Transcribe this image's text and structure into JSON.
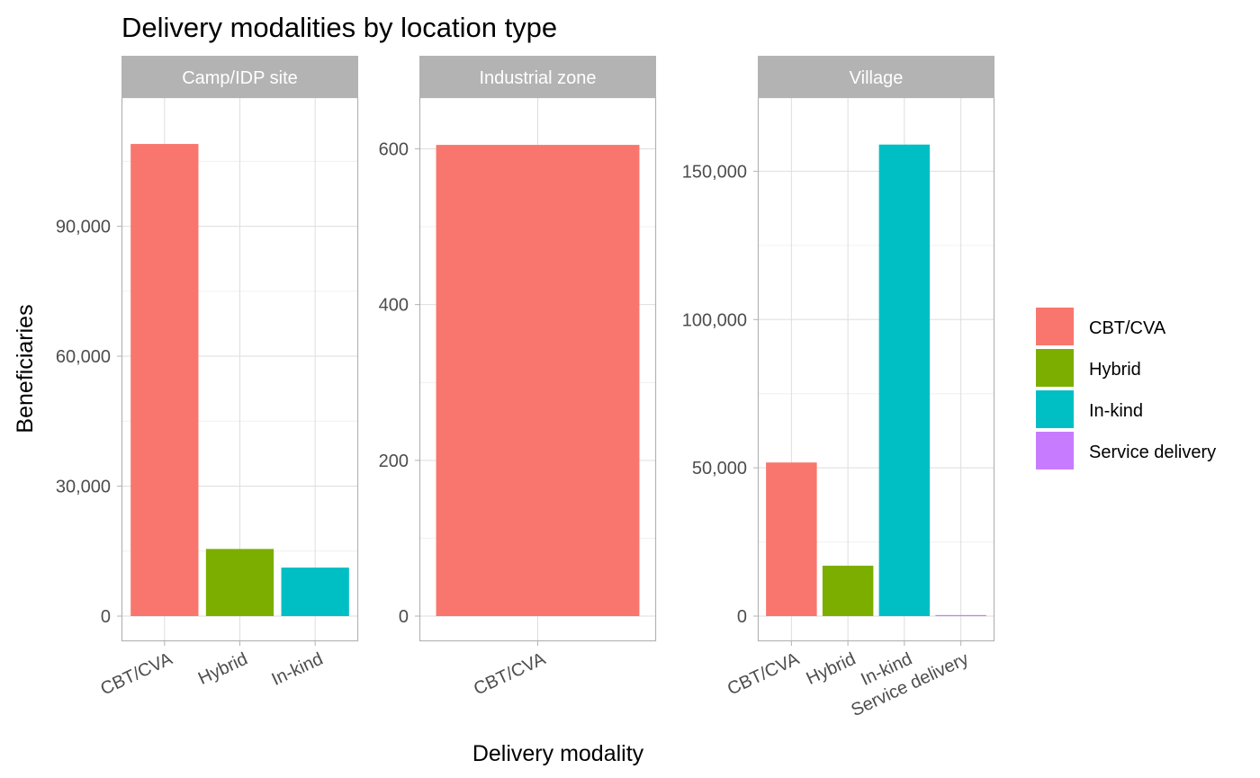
{
  "chart_data": {
    "type": "bar",
    "title": "Delivery modalities by location type",
    "xlabel": "Delivery modality",
    "ylabel": "Beneficiaries",
    "grid": true,
    "legend_position": "right",
    "legend": [
      {
        "name": "CBT/CVA",
        "color": "#F8766D"
      },
      {
        "name": "Hybrid",
        "color": "#7CAE00"
      },
      {
        "name": "In-kind",
        "color": "#00BFC4"
      },
      {
        "name": "Service delivery",
        "color": "#C77CFF"
      }
    ],
    "panels": [
      {
        "label": "Camp/IDP site",
        "categories": [
          "CBT/CVA",
          "Hybrid",
          "In-kind"
        ],
        "values": [
          109000,
          15500,
          11200
        ],
        "ylim": [
          0,
          114000
        ],
        "yticks": [
          0,
          30000,
          60000,
          90000
        ],
        "ytick_labels": [
          "0",
          "30,000",
          "60,000",
          "90,000"
        ]
      },
      {
        "label": "Industrial zone",
        "categories": [
          "CBT/CVA"
        ],
        "values": [
          605
        ],
        "ylim": [
          0,
          634
        ],
        "yticks": [
          0,
          200,
          400,
          600
        ],
        "ytick_labels": [
          "0",
          "200",
          "400",
          "600"
        ]
      },
      {
        "label": "Village",
        "categories": [
          "CBT/CVA",
          "Hybrid",
          "In-kind",
          "Service delivery"
        ],
        "values": [
          51800,
          17000,
          159000,
          350
        ],
        "ylim": [
          0,
          166500
        ],
        "yticks": [
          0,
          50000,
          100000,
          150000
        ],
        "ytick_labels": [
          "0",
          "50,000",
          "100,000",
          "150,000"
        ]
      }
    ]
  }
}
